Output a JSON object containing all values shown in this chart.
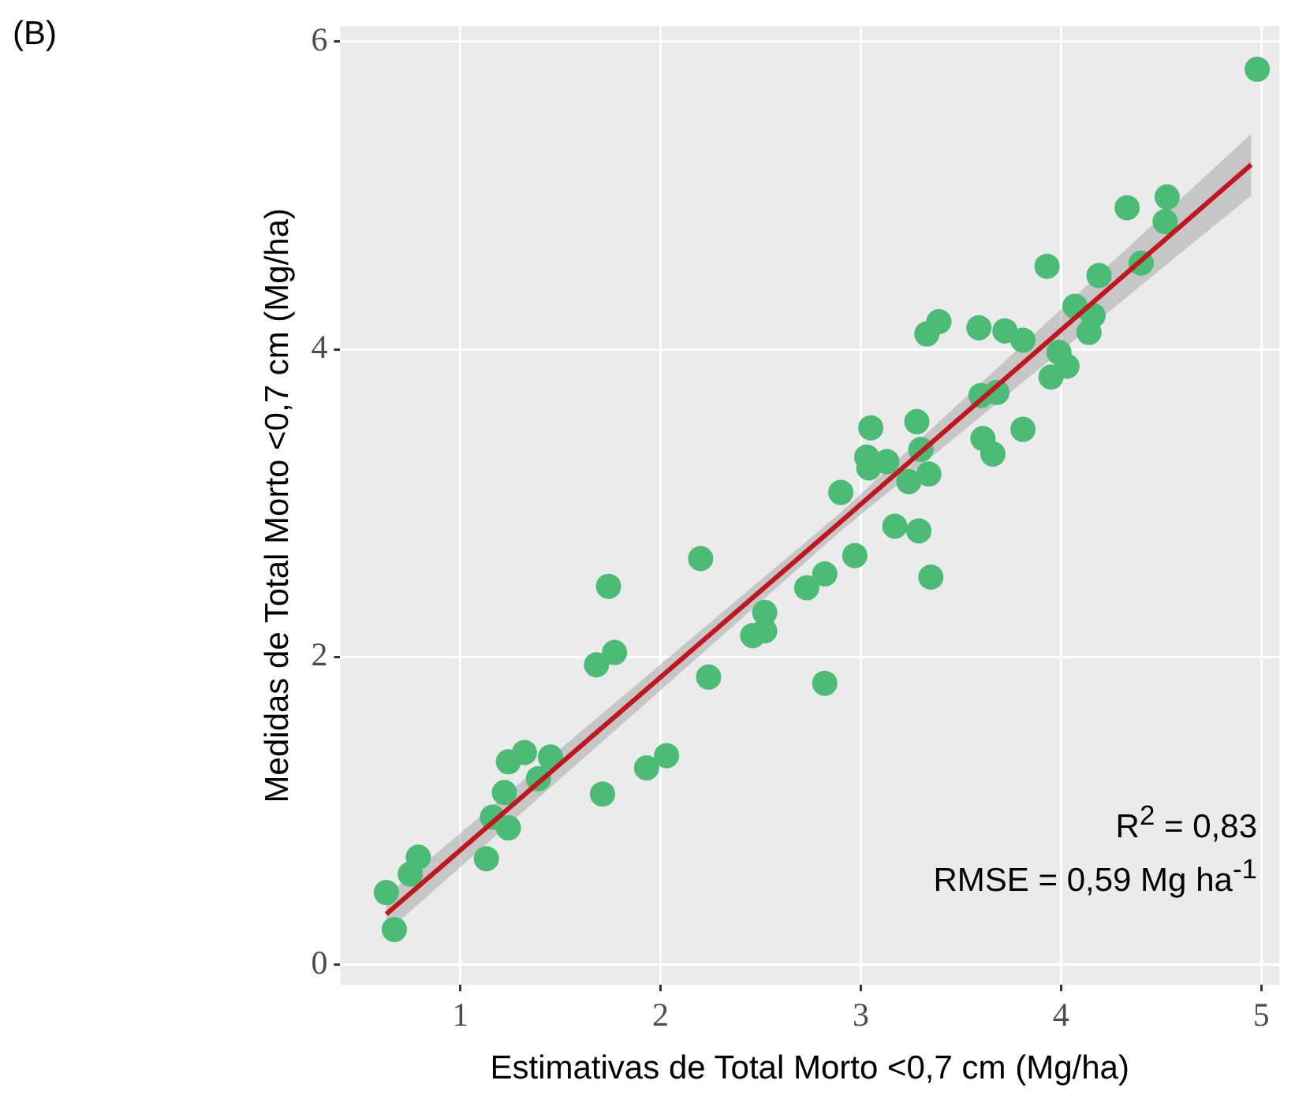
{
  "chart_data": {
    "type": "scatter",
    "xlabel": "Estimativas de Total Morto <0,7 cm (Mg/ha)",
    "ylabel": "Medidas de Total Morto <0,7 cm (Mg/ha)",
    "annotations": [
      "(B)",
      "R$^{2}$ = 0,83",
      "RMSE = 0,59 Mg ha$^{-1}$"
    ],
    "xlim": [
      0.4,
      5.09
    ],
    "ylim": [
      -0.13,
      6.1
    ],
    "xticks": [
      1,
      2,
      3,
      4,
      5
    ],
    "yticks": [
      0,
      2,
      4,
      6
    ],
    "grid": true,
    "legend": false,
    "marker": "circle",
    "series": [
      {
        "color": "#4cbb75",
        "x": [
          0.63,
          0.67,
          0.75,
          0.79,
          1.13,
          1.16,
          1.22,
          1.24,
          1.24,
          1.32,
          1.39,
          1.45,
          1.71,
          1.68,
          1.77,
          1.74,
          1.93,
          2.03,
          2.2,
          2.24,
          2.46,
          2.52,
          2.52,
          2.73,
          2.82,
          2.82,
          2.9,
          2.97,
          3.05,
          3.03,
          3.04,
          3.13,
          3.17,
          3.24,
          3.28,
          3.29,
          3.3,
          3.34,
          3.35,
          3.33,
          3.39,
          3.59,
          3.61,
          3.66,
          3.6,
          3.68,
          3.72,
          3.81,
          3.81,
          3.93,
          3.95,
          3.99,
          4.03,
          4.07,
          4.14,
          4.16,
          4.19,
          4.33,
          4.4,
          4.52,
          4.53,
          4.98
        ],
        "values": [
          0.47,
          0.23,
          0.59,
          0.7,
          0.69,
          0.96,
          1.12,
          0.89,
          1.32,
          1.38,
          1.21,
          1.35,
          1.11,
          1.95,
          2.03,
          2.46,
          1.28,
          1.36,
          2.64,
          1.87,
          2.14,
          2.29,
          2.17,
          2.45,
          2.54,
          1.83,
          3.07,
          2.66,
          3.49,
          3.3,
          3.23,
          3.27,
          2.85,
          3.14,
          3.53,
          2.82,
          3.35,
          3.19,
          2.52,
          4.1,
          4.18,
          4.14,
          3.42,
          3.32,
          3.7,
          3.72,
          4.12,
          4.06,
          3.48,
          4.54,
          3.82,
          3.98,
          3.89,
          4.28,
          4.11,
          4.22,
          4.48,
          4.92,
          4.56,
          4.83,
          4.99,
          5.82
        ]
      },
      {
        "type": "line",
        "color": "#c0161d",
        "line_style": "solid",
        "marker": "none",
        "x": [
          0.63,
          2.9,
          4.95
        ],
        "values": [
          0.33,
          2.88,
          5.2
        ],
        "lower": [
          0.21,
          2.82,
          5.0
        ],
        "upper": [
          0.45,
          2.94,
          5.4
        ]
      }
    ]
  }
}
